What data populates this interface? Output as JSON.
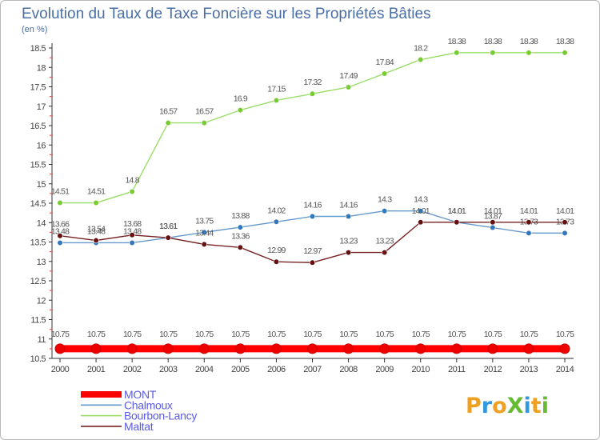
{
  "chart_data": {
    "type": "line",
    "title": "Evolution du Taux de Taxe Foncière sur les Propriétés Bâties",
    "subtitle": "(en %)",
    "xlabel": "",
    "ylabel": "",
    "categories": [
      "2000",
      "2001",
      "2002",
      "2003",
      "2004",
      "2005",
      "2006",
      "2007",
      "2008",
      "2009",
      "2010",
      "2011",
      "2012",
      "2013",
      "2014"
    ],
    "ylim": [
      10.5,
      18.5
    ],
    "yticks": [
      "10.5",
      "11",
      "11.5",
      "12",
      "12.5",
      "13",
      "13.5",
      "14",
      "14.5",
      "15",
      "15.5",
      "16",
      "16.5",
      "17",
      "17.5",
      "18",
      "18.5"
    ],
    "grid": false,
    "legend_position": "bottom-left",
    "series": [
      {
        "name": "MONT",
        "color": "#ff0000",
        "values": [
          10.75,
          10.75,
          10.75,
          10.75,
          10.75,
          10.75,
          10.75,
          10.75,
          10.75,
          10.75,
          10.75,
          10.75,
          10.75,
          10.75,
          10.75
        ],
        "labels": [
          "10.75",
          "10.75",
          "10.75",
          "10.75",
          "10.75",
          "10.75",
          "10.75",
          "10.75",
          "10.75",
          "10.75",
          "10.75",
          "10.75",
          "10.75",
          "10.75",
          "10.75"
        ]
      },
      {
        "name": "Chalmoux",
        "color": "#6699cc",
        "values": [
          13.48,
          13.48,
          13.48,
          13.61,
          13.75,
          13.88,
          14.02,
          14.16,
          14.16,
          14.3,
          14.3,
          14.01,
          13.87,
          13.73,
          13.73
        ],
        "labels": [
          "13.48",
          "13.48",
          "13.48",
          "13.61",
          "13.75",
          "13.88",
          "14.02",
          "14.16",
          "14.16",
          "14.3",
          "14.3",
          "14.01",
          "13.87",
          "13.73",
          "13.73"
        ]
      },
      {
        "name": "Bourbon-Lancy",
        "color": "#99dd66",
        "values": [
          14.51,
          14.51,
          14.8,
          16.57,
          16.57,
          16.9,
          17.15,
          17.32,
          17.49,
          17.84,
          18.2,
          18.38,
          18.38,
          18.38,
          18.38
        ],
        "labels": [
          "14.51",
          "14.51",
          "14.8",
          "16.57",
          "16.57",
          "16.9",
          "17.15",
          "17.32",
          "17.49",
          "17.84",
          "18.2",
          "18.38",
          "18.38",
          "18.38",
          "18.38"
        ]
      },
      {
        "name": "Maltat",
        "color": "#772222",
        "values": [
          13.66,
          13.54,
          13.68,
          13.61,
          13.44,
          13.36,
          12.99,
          12.97,
          13.23,
          13.23,
          14.01,
          14.01,
          14.01,
          14.01,
          14.01
        ],
        "labels": [
          "13.66",
          "13.54",
          "13.68",
          "13.61",
          "13.44",
          "13.36",
          "12.99",
          "12.97",
          "13.23",
          "13.23",
          "14.01",
          "14.01",
          "14.01",
          "14.01",
          "14.01"
        ]
      }
    ]
  },
  "logo": {
    "text": "ProXiti"
  }
}
